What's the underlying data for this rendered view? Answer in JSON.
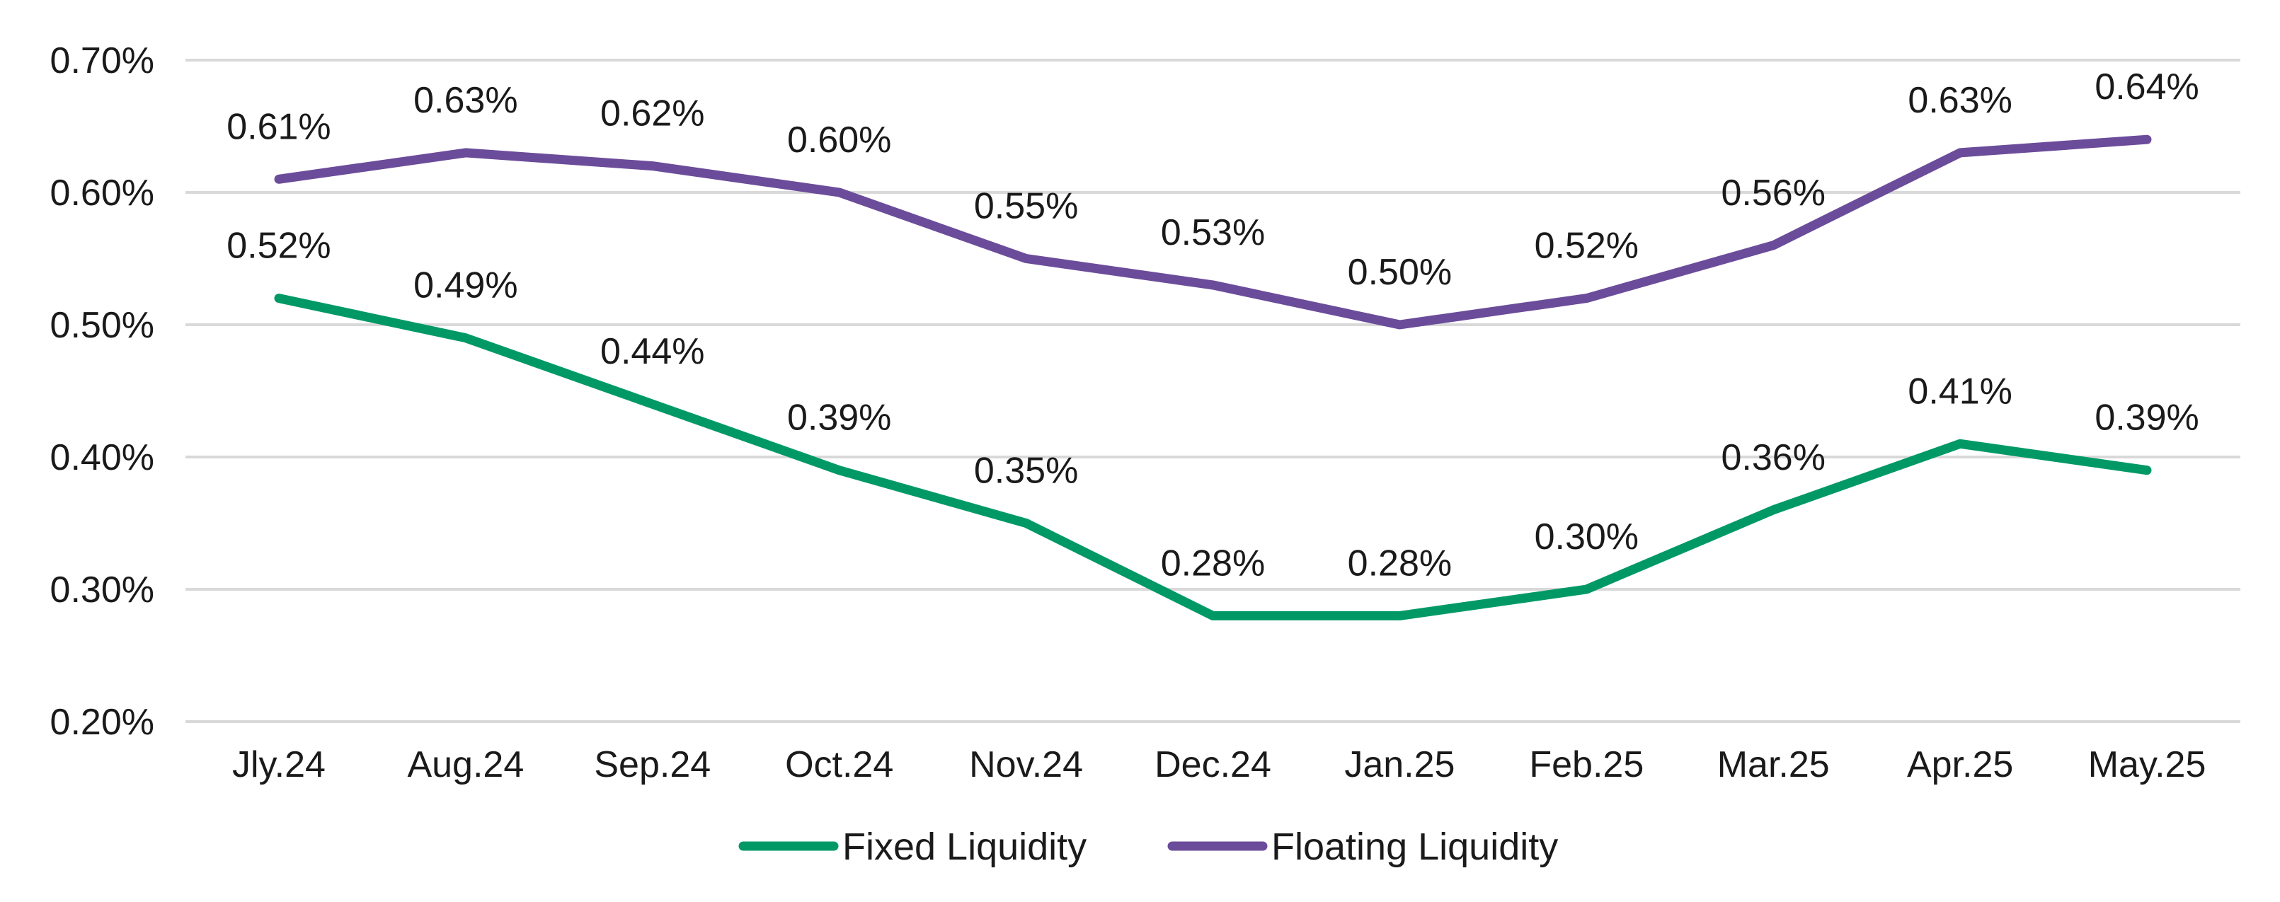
{
  "chart_data": {
    "type": "line",
    "title": "",
    "xlabel": "",
    "ylabel": "",
    "categories": [
      "Jly.24",
      "Aug.24",
      "Sep.24",
      "Oct.24",
      "Nov.24",
      "Dec.24",
      "Jan.25",
      "Feb.25",
      "Mar.25",
      "Apr.25",
      "May.25"
    ],
    "ylim": [
      0.2,
      0.7
    ],
    "yticks": [
      0.2,
      0.3,
      0.4,
      0.5,
      0.6,
      0.7
    ],
    "ytick_labels": [
      "0.20%",
      "0.30%",
      "0.40%",
      "0.50%",
      "0.60%",
      "0.70%"
    ],
    "grid": true,
    "legend_position": "bottom",
    "series": [
      {
        "name": "Fixed Liquidity",
        "color": "#009966",
        "values": [
          0.52,
          0.49,
          0.44,
          0.39,
          0.35,
          0.28,
          0.28,
          0.3,
          0.36,
          0.41,
          0.39
        ],
        "labels": [
          "0.52%",
          "0.49%",
          "0.44%",
          "0.39%",
          "0.35%",
          "0.28%",
          "0.28%",
          "0.30%",
          "0.36%",
          "0.41%",
          "0.39%"
        ]
      },
      {
        "name": "Floating Liquidity",
        "color": "#6b4c9a",
        "values": [
          0.61,
          0.63,
          0.62,
          0.6,
          0.55,
          0.53,
          0.5,
          0.52,
          0.56,
          0.63,
          0.64
        ],
        "labels": [
          "0.61%",
          "0.63%",
          "0.62%",
          "0.60%",
          "0.55%",
          "0.53%",
          "0.50%",
          "0.52%",
          "0.56%",
          "0.63%",
          "0.64%"
        ]
      }
    ]
  }
}
